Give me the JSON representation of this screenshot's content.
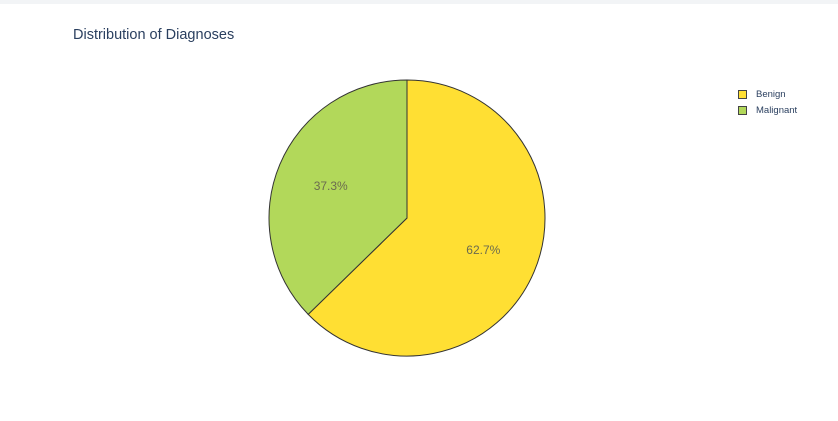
{
  "chart_data": {
    "type": "pie",
    "title": "Distribution of Diagnoses",
    "labels": [
      "Benign",
      "Malignant"
    ],
    "values": [
      62.7,
      37.3
    ],
    "text_labels": [
      "62.7%",
      "37.3%"
    ],
    "colors": [
      "#ffdf33",
      "#b2d85a"
    ],
    "legend_position": "top-right",
    "start_angle": "12 o'clock",
    "direction": "clockwise"
  }
}
